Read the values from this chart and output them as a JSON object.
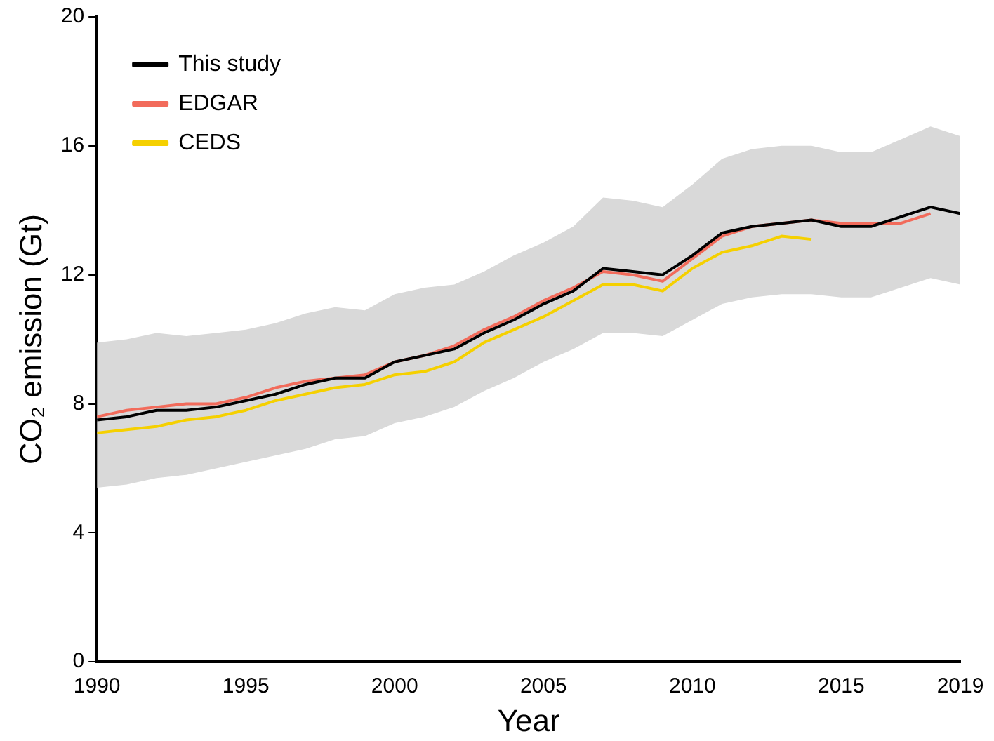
{
  "chart_data": {
    "type": "line",
    "xlabel": "Year",
    "ylabel": "CO₂ emission (Gt)",
    "x": [
      1990,
      1991,
      1992,
      1993,
      1994,
      1995,
      1996,
      1997,
      1998,
      1999,
      2000,
      2001,
      2002,
      2003,
      2004,
      2005,
      2006,
      2007,
      2008,
      2009,
      2010,
      2011,
      2012,
      2013,
      2014,
      2015,
      2016,
      2017,
      2018,
      2019
    ],
    "series": [
      {
        "name": "This study",
        "color": "#000000",
        "values": [
          7.5,
          7.6,
          7.8,
          7.8,
          7.9,
          8.1,
          8.3,
          8.6,
          8.8,
          8.8,
          9.3,
          9.5,
          9.7,
          10.2,
          10.6,
          11.1,
          11.5,
          12.2,
          12.1,
          12.0,
          12.6,
          13.3,
          13.5,
          13.6,
          13.7,
          13.5,
          13.5,
          13.8,
          14.1,
          13.9
        ],
        "lower": [
          5.4,
          5.5,
          5.7,
          5.8,
          6.0,
          6.2,
          6.4,
          6.6,
          6.9,
          7.0,
          7.4,
          7.6,
          7.9,
          8.4,
          8.8,
          9.3,
          9.7,
          10.2,
          10.2,
          10.1,
          10.6,
          11.1,
          11.3,
          11.4,
          11.4,
          11.3,
          11.3,
          11.6,
          11.9,
          11.7
        ],
        "upper": [
          9.9,
          10.0,
          10.2,
          10.1,
          10.2,
          10.3,
          10.5,
          10.8,
          11.0,
          10.9,
          11.4,
          11.6,
          11.7,
          12.1,
          12.6,
          13.0,
          13.5,
          14.4,
          14.3,
          14.1,
          14.8,
          15.6,
          15.9,
          16.0,
          16.0,
          15.8,
          15.8,
          16.2,
          16.6,
          16.3
        ]
      },
      {
        "name": "EDGAR",
        "color": "#f26b5b",
        "values": [
          7.6,
          7.8,
          7.9,
          8.0,
          8.0,
          8.2,
          8.5,
          8.7,
          8.8,
          8.9,
          9.3,
          9.5,
          9.8,
          10.3,
          10.7,
          11.2,
          11.6,
          12.1,
          12.0,
          11.8,
          12.5,
          13.2,
          13.5,
          13.6,
          13.7,
          13.6,
          13.6,
          13.6,
          13.9,
          null
        ]
      },
      {
        "name": "CEDS",
        "color": "#f5d000",
        "values": [
          7.1,
          7.2,
          7.3,
          7.5,
          7.6,
          7.8,
          8.1,
          8.3,
          8.5,
          8.6,
          8.9,
          9.0,
          9.3,
          9.9,
          10.3,
          10.7,
          11.2,
          11.7,
          11.7,
          11.5,
          12.2,
          12.7,
          12.9,
          13.2,
          13.1,
          null,
          null,
          null,
          null,
          null
        ]
      }
    ],
    "xlim": [
      1990,
      2019
    ],
    "xticks": [
      1990,
      1995,
      2000,
      2005,
      2010,
      2015,
      2019
    ],
    "ylim": [
      0,
      20
    ],
    "yticks": [
      0,
      4,
      8,
      12,
      16,
      20
    ],
    "grid": false,
    "legend": "top left",
    "marker": "none",
    "line_style": "solid"
  }
}
